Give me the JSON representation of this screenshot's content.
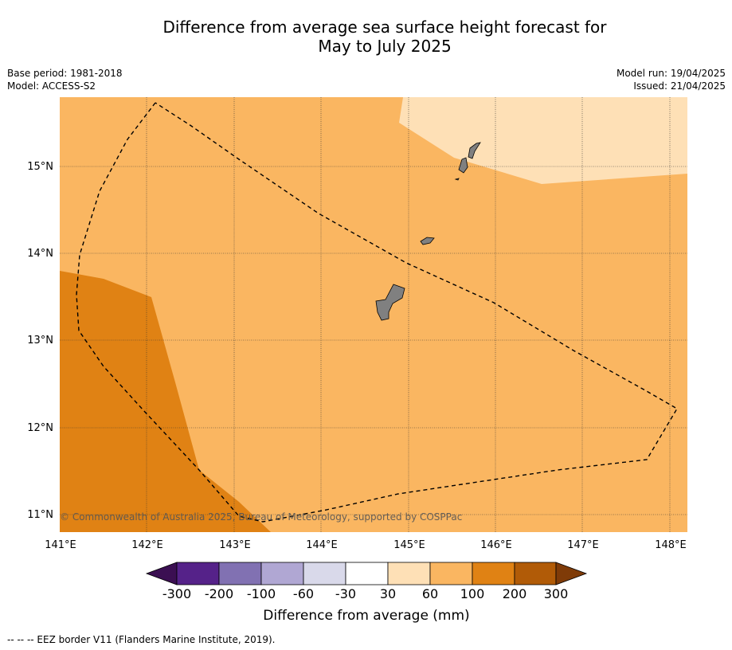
{
  "title_line1": "Difference from average sea surface height forecast for",
  "title_line2": "May to July 2025",
  "meta_left": [
    "Base period: 1981-2018",
    "Model: ACCESS-S2"
  ],
  "meta_right": [
    "Model run: 19/04/2025",
    "Issued: 21/04/2025"
  ],
  "copyright": "© Commonwealth of Australia 2025, Bureau of Meteorology, supported by COSPPac",
  "lat_ticks": [
    "15°N",
    "14°N",
    "13°N",
    "12°N",
    "11°N"
  ],
  "lon_ticks": [
    "141°E",
    "142°E",
    "143°E",
    "144°E",
    "145°E",
    "146°E",
    "147°E",
    "148°E"
  ],
  "colorbar": {
    "labels": [
      "-300",
      "-200",
      "-100",
      "-60",
      "-30",
      "30",
      "60",
      "100",
      "200",
      "300"
    ],
    "colors": [
      "#3b0f52",
      "#552289",
      "#8171b2",
      "#b0a7d3",
      "#d9d9ea",
      "#ffffff",
      "#fee0b6",
      "#fab661",
      "#e08214",
      "#b15b07",
      "#7f3b08"
    ],
    "label": "Difference from average (mm)"
  },
  "footer": "--  --  -- EEZ border V11 (Flanders Marine Institute, 2019)."
}
